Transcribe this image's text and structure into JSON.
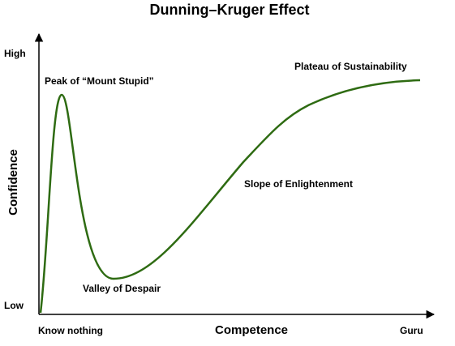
{
  "title": "Dunning–Kruger Effect",
  "x_axis": {
    "label": "Competence",
    "start": "Know nothing",
    "end": "Guru"
  },
  "y_axis": {
    "label": "Confidence",
    "top": "High",
    "bottom": "Low"
  },
  "annotations": {
    "peak": "Peak of “Mount Stupid”",
    "valley": "Valley of Despair",
    "slope": "Slope of Enlightenment",
    "plateau": "Plateau of Sustainability"
  }
}
